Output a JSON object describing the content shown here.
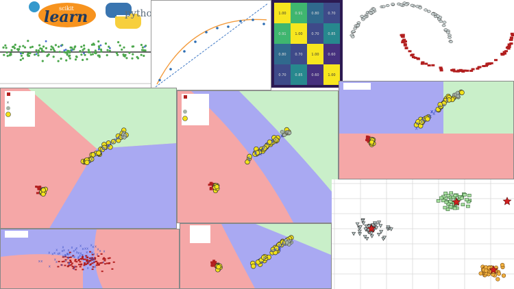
{
  "logos": {
    "sklearn_small": "scikit",
    "sklearn_main": "learn",
    "python_word": "python"
  },
  "heatmap": {
    "rows": [
      [
        "1.00",
        "0.91",
        "0.80",
        "0.70"
      ],
      [
        "0.91",
        "1.00",
        "0.70",
        "0.85"
      ],
      [
        "0.80",
        "0.70",
        "1.00",
        "0.60"
      ],
      [
        "0.70",
        "0.85",
        "0.60",
        "1.00"
      ]
    ]
  },
  "colors": {
    "red_region": "#f5a7a7",
    "blue_region": "#a9a9f2",
    "green_region": "#c9efc9",
    "yellow_point": "#f2e21b",
    "dark_red_point": "#b21f1f",
    "blue_point": "#4056c7",
    "grey_point": "#a6b3a6",
    "green_point": "#4ea84e"
  }
}
